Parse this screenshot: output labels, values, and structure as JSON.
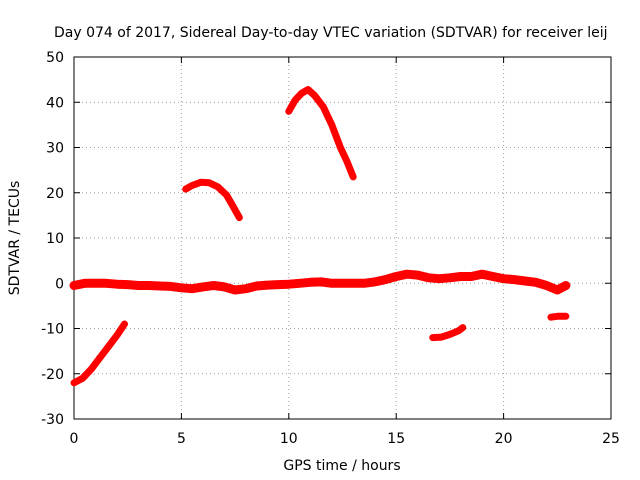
{
  "chart_data": {
    "type": "scatter",
    "title": "Day 074 of 2017, Sidereal Day-to-day VTEC variation (SDTVAR) for receiver leij",
    "xlabel": "GPS time / hours",
    "ylabel": "SDTVAR / TECUs",
    "xlim": [
      0,
      25
    ],
    "ylim": [
      -30,
      50
    ],
    "xticks": [
      0,
      5,
      10,
      15,
      20,
      25
    ],
    "yticks": [
      -30,
      -20,
      -10,
      0,
      10,
      20,
      30,
      40,
      50
    ],
    "grid": true,
    "marker_color": "#ff0000",
    "series": [
      {
        "name": "baseline",
        "x": [
          0,
          0.5,
          1,
          1.5,
          2,
          2.5,
          3,
          3.5,
          4,
          4.5,
          5,
          5.5,
          6,
          6.5,
          7,
          7.5,
          8,
          8.5,
          9,
          9.5,
          10,
          10.5,
          11,
          11.5,
          12,
          12.5,
          13,
          13.5,
          14,
          14.5,
          15,
          15.5,
          16,
          16.5,
          17,
          17.5,
          18,
          18.5,
          19,
          19.5,
          20,
          20.5,
          21,
          21.5,
          22,
          22.5,
          22.9
        ],
        "y": [
          -0.5,
          0,
          0,
          0,
          -0.2,
          -0.3,
          -0.5,
          -0.5,
          -0.6,
          -0.7,
          -1,
          -1.2,
          -0.8,
          -0.5,
          -0.8,
          -1.5,
          -1.2,
          -0.6,
          -0.4,
          -0.3,
          -0.2,
          0,
          0.2,
          0.3,
          0,
          0,
          0,
          0,
          0.3,
          0.8,
          1.5,
          2,
          1.8,
          1.2,
          1,
          1.2,
          1.5,
          1.5,
          2,
          1.5,
          1,
          0.8,
          0.5,
          0.2,
          -0.5,
          -1.5,
          -0.5
        ]
      },
      {
        "name": "arc-1",
        "x": [
          0,
          0.4,
          0.8,
          1.2,
          1.6,
          2.0,
          2.35
        ],
        "y": [
          -22,
          -21,
          -19,
          -16.5,
          -14,
          -11.5,
          -9
        ]
      },
      {
        "name": "arc-2",
        "x": [
          5.2,
          5.5,
          5.9,
          6.3,
          6.7,
          7.1,
          7.4,
          7.7
        ],
        "y": [
          20.8,
          21.6,
          22.3,
          22.2,
          21.3,
          19.5,
          17,
          14.5
        ]
      },
      {
        "name": "arc-3",
        "x": [
          10,
          10.3,
          10.6,
          10.9,
          11.2,
          11.6,
          12,
          12.4,
          12.7,
          13
        ],
        "y": [
          38,
          40.5,
          42,
          42.8,
          41.5,
          39,
          35,
          30,
          27,
          23.5
        ]
      },
      {
        "name": "arc-4",
        "x": [
          16.7,
          17.1,
          17.5,
          17.9,
          18.1
        ],
        "y": [
          -12,
          -11.9,
          -11.3,
          -10.5,
          -9.8
        ]
      },
      {
        "name": "arc-5",
        "x": [
          22.2,
          22.5,
          22.9
        ],
        "y": [
          -7.5,
          -7.3,
          -7.3
        ]
      }
    ]
  }
}
